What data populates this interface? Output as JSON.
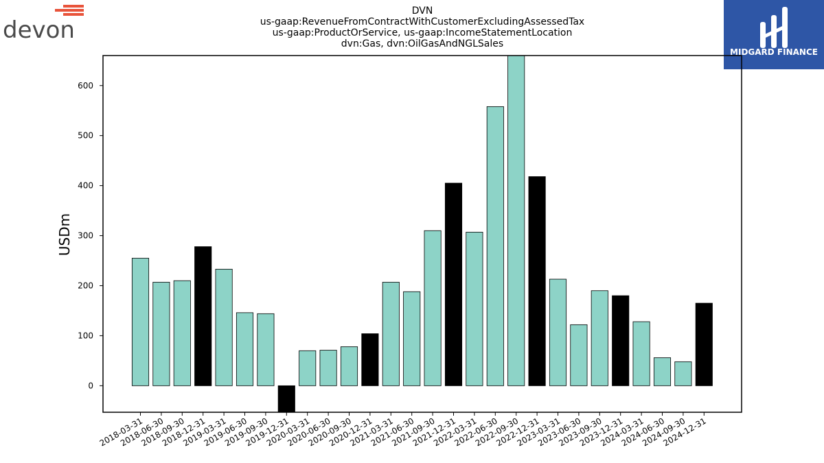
{
  "logos": {
    "devon": {
      "text": "devon",
      "accent_color": "#e8533a",
      "text_color": "#4a4a4a"
    },
    "midgard": {
      "text": "MIDGARD FINANCE",
      "bg_color": "#2e56a6"
    }
  },
  "colors": {
    "annual_bar": "#000000",
    "quarter_bar": "#8dd3c7",
    "edge": "#000000"
  },
  "chart_data": {
    "type": "bar",
    "title_lines": [
      "DVN",
      "us-gaap:RevenueFromContractWithCustomerExcludingAssessedTax",
      "us-gaap:ProductOrService, us-gaap:IncomeStatementLocation",
      "dvn:Gas, dvn:OilGasAndNGLSales"
    ],
    "ylabel": "USDm",
    "xlabel": "",
    "ylim": [
      -53,
      660
    ],
    "yticks": [
      0,
      100,
      200,
      300,
      400,
      500,
      600
    ],
    "grid": false,
    "categories": [
      "2018-03-31",
      "2018-06-30",
      "2018-09-30",
      "2018-12-31",
      "2019-03-31",
      "2019-06-30",
      "2019-09-30",
      "2019-12-31",
      "2020-03-31",
      "2020-06-30",
      "2020-09-30",
      "2020-12-31",
      "2021-03-31",
      "2021-06-30",
      "2021-09-30",
      "2021-12-31",
      "2022-03-31",
      "2022-06-30",
      "2022-09-30",
      "2022-12-31",
      "2023-03-31",
      "2023-06-30",
      "2023-09-30",
      "2023-12-31",
      "2024-03-31",
      "2024-06-30",
      "2024-09-30",
      "2024-12-31"
    ],
    "values": [
      255,
      207,
      210,
      278,
      233,
      146,
      144,
      -55,
      70,
      71,
      78,
      104,
      207,
      188,
      310,
      405,
      307,
      558,
      670,
      418,
      213,
      122,
      190,
      180,
      128,
      56,
      48,
      165
    ],
    "annual_flags": [
      false,
      false,
      false,
      true,
      false,
      false,
      false,
      true,
      false,
      false,
      false,
      true,
      false,
      false,
      false,
      true,
      false,
      false,
      false,
      true,
      false,
      false,
      false,
      true,
      false,
      false,
      false,
      true
    ]
  }
}
